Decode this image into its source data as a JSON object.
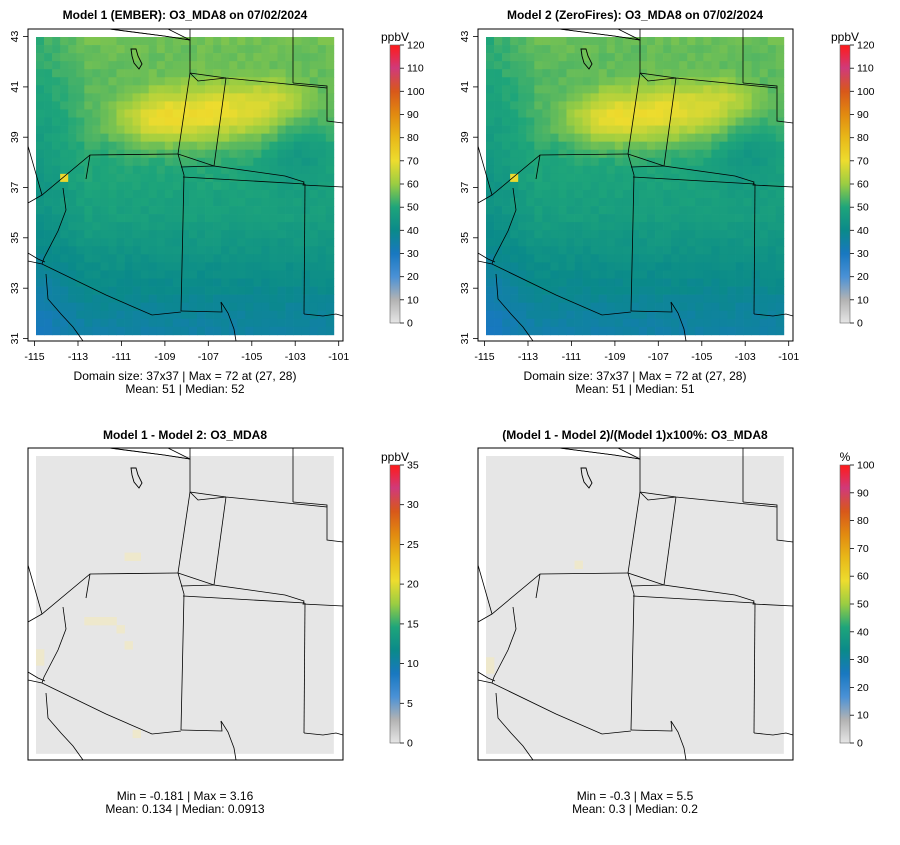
{
  "chart_data": [
    {
      "type": "heatmap",
      "title": "Model 1 (EMBER): O3_MDA8 on 07/02/2024",
      "unit": "ppbV",
      "colorbar_ticks": [
        "0",
        "10",
        "20",
        "30",
        "40",
        "50",
        "60",
        "70",
        "80",
        "90",
        "100",
        "110",
        "120"
      ],
      "colorbar_range": [
        0,
        120
      ],
      "x_ticks": [
        "-115",
        "-113",
        "-111",
        "-109",
        "-107",
        "-105",
        "-103",
        "-101"
      ],
      "y_ticks": [
        "31",
        "33",
        "35",
        "37",
        "39",
        "41",
        "43"
      ],
      "xlim": [
        -115.3,
        -100.8
      ],
      "ylim": [
        30.9,
        43.3
      ],
      "grid_size": "37x37",
      "stats": {
        "line1": "Domain size: 37x37 | Max = 72 at (27, 28)",
        "line2": "Mean: 51 |  Median: 52"
      }
    },
    {
      "type": "heatmap",
      "title": "Model 2 (ZeroFires): O3_MDA8 on 07/02/2024",
      "unit": "ppbV",
      "colorbar_ticks": [
        "0",
        "10",
        "20",
        "30",
        "40",
        "50",
        "60",
        "70",
        "80",
        "90",
        "100",
        "110",
        "120"
      ],
      "colorbar_range": [
        0,
        120
      ],
      "x_ticks": [
        "-115",
        "-113",
        "-111",
        "-109",
        "-107",
        "-105",
        "-103",
        "-101"
      ],
      "y_ticks": [
        "31",
        "33",
        "35",
        "37",
        "39",
        "41",
        "43"
      ],
      "xlim": [
        -115.3,
        -100.8
      ],
      "ylim": [
        30.9,
        43.3
      ],
      "grid_size": "37x37",
      "stats": {
        "line1": "Domain size: 37x37 | Max = 72 at (27, 28)",
        "line2": "Mean: 51 |  Median: 51"
      }
    },
    {
      "type": "heatmap",
      "title": "Model 1 - Model 2: O3_MDA8",
      "unit": "ppbV",
      "colorbar_ticks": [
        "0",
        "5",
        "10",
        "15",
        "20",
        "25",
        "30",
        "35"
      ],
      "colorbar_range": [
        0,
        35
      ],
      "stats": {
        "line1": "Min = -0.181 | Max = 3.16",
        "line2": "Mean: 0.134 |  Median: 0.0913"
      }
    },
    {
      "type": "heatmap",
      "title": "(Model 1 - Model 2)/(Model 1)x100%: O3_MDA8",
      "unit": "%",
      "colorbar_ticks": [
        "0",
        "10",
        "20",
        "30",
        "40",
        "50",
        "60",
        "70",
        "80",
        "90",
        "100"
      ],
      "colorbar_range": [
        0,
        100
      ],
      "stats": {
        "line1": "Min = -0.3 | Max = 5.5",
        "line2": "Mean: 0.3 |  Median: 0.2"
      }
    }
  ],
  "colors": {
    "scale": [
      "#e6e6e6",
      "#b3b3b3",
      "#4a91d6",
      "#1878c0",
      "#0a8a8a",
      "#1ea57a",
      "#9acd42",
      "#eddc2e",
      "#e8b818",
      "#e28a10",
      "#d8581a",
      "#d03a7a",
      "#ff1a1a"
    ],
    "diff_background": "#e6e6e6",
    "diff_light": "#eee8cc"
  }
}
